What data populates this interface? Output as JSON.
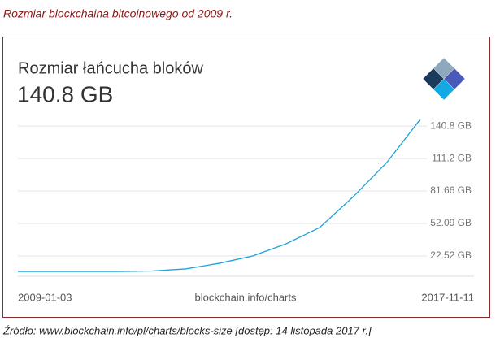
{
  "caption": "Rozmiar blockchaina bitcoinowego od 2009 r.",
  "source": "Źródło: www.blockchain.info/pl/charts/blocks-size [dostęp: 14 listopada 2017 r.]",
  "chart_data": {
    "type": "line",
    "title": "Rozmiar łańcucha bloków",
    "subtitle": "140.8 GB",
    "annotation": "blockchain.info/charts",
    "categories": [
      "2009-01-03",
      null,
      null,
      null,
      null,
      null,
      null,
      null,
      null,
      null,
      null,
      null,
      "2017-11-11"
    ],
    "values": [
      8.4,
      8.4,
      8.4,
      8.4,
      8.8,
      10.7,
      15.8,
      22.5,
      33.6,
      48.4,
      76.5,
      107.6,
      147
    ],
    "color": "#1aa3d9",
    "ylim": [
      4,
      152
    ],
    "yticks": [
      {
        "value": 22.52,
        "label": "22.52 GB"
      },
      {
        "value": 52.09,
        "label": "52.09 GB"
      },
      {
        "value": 81.66,
        "label": "81.66 GB"
      },
      {
        "value": 111.2,
        "label": "111.2 GB"
      },
      {
        "value": 140.8,
        "label": "140.8 GB"
      }
    ],
    "grid": true
  }
}
